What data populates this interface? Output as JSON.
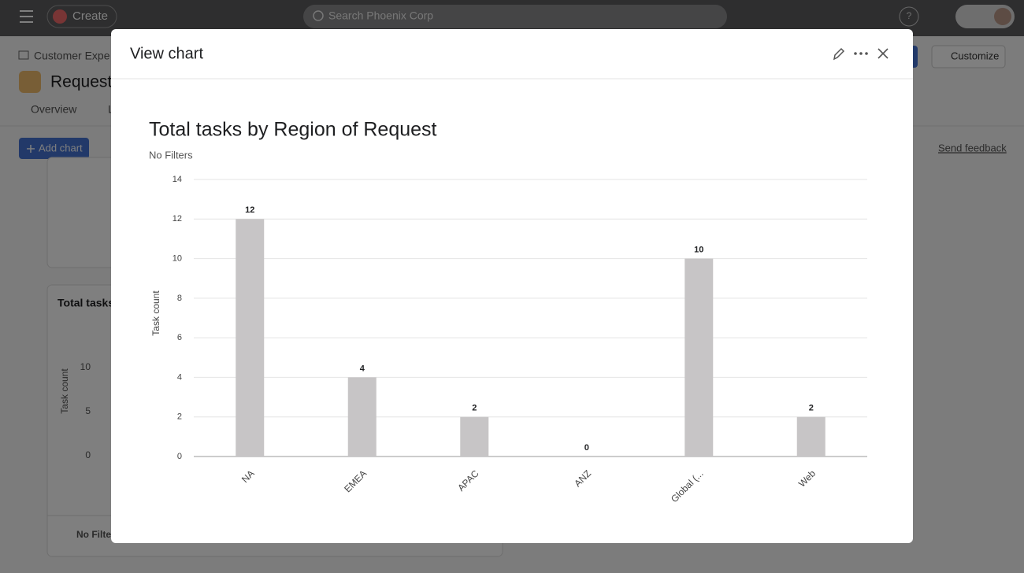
{
  "topbar": {
    "create": "Create",
    "search": "Search Phoenix Corp",
    "help": "?"
  },
  "background": {
    "breadcrumb": "Customer Expe",
    "project": "Request",
    "tabs": [
      "Overview",
      "L"
    ],
    "add_chart": "Add chart",
    "send_feedback": "Send feedback",
    "customize": "Customize",
    "card_title": "Total tasks",
    "card_y_label": "Task count",
    "card_yticks": [
      "10",
      "5",
      "0"
    ],
    "card_filter": "No Filters"
  },
  "modal": {
    "title": "View chart"
  },
  "chart_data": {
    "type": "bar",
    "title": "Total tasks by Region of Request",
    "subtitle": "No Filters",
    "y_label": "Task count",
    "categories": [
      "NA",
      "EMEA",
      "APAC",
      "ANZ",
      "Global (...",
      "Web"
    ],
    "values": [
      12,
      4,
      2,
      0,
      10,
      2
    ],
    "color": "#c7c5c6",
    "ylim": [
      0,
      14
    ],
    "yticks": [
      0,
      2,
      4,
      6,
      8,
      10,
      12,
      14
    ],
    "grid": true
  }
}
